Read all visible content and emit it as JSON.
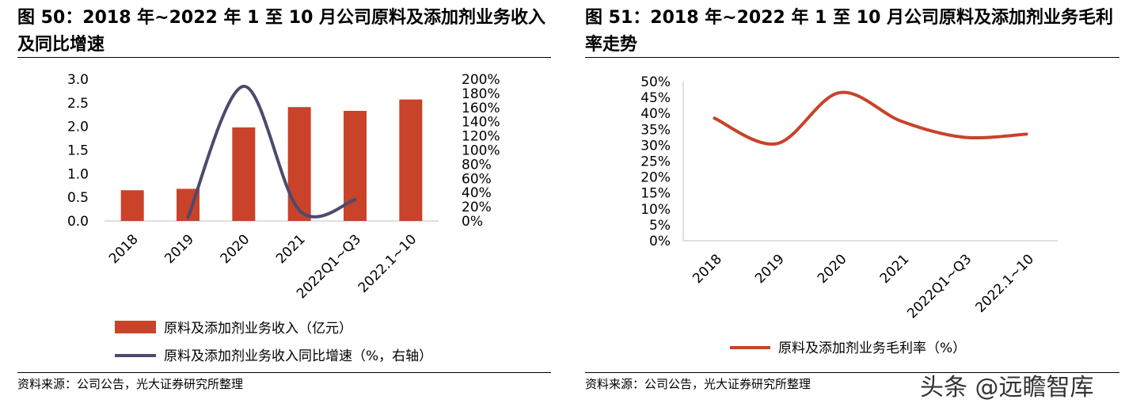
{
  "chart_data": [
    {
      "type": "bar",
      "title": "图 50：2018 年~2022 年 1 至 10 月公司原料及添加剂业务收入及同比增速",
      "title_lines": [
        "图 50：2018 年~2022 年 1 至 10 月公司原料及添加剂业务收入",
        "及同比增速"
      ],
      "categories": [
        "2018",
        "2019",
        "2020",
        "2021",
        "2022Q1~Q3",
        "2022.1~10"
      ],
      "series": [
        {
          "name": "原料及添加剂业务收入（亿元）",
          "type": "bar",
          "axis": "left",
          "color": "#C8432A",
          "values": [
            0.65,
            0.68,
            1.98,
            2.41,
            2.33,
            2.57
          ]
        },
        {
          "name": "原料及添加剂业务收入同比增速（%，右轴）",
          "type": "line",
          "axis": "right",
          "color": "#4B4A6E",
          "values": [
            null,
            5,
            190,
            15,
            30,
            null
          ]
        }
      ],
      "y_left": {
        "min": 0,
        "max": 3.0,
        "ticks": [
          "0.0",
          "0.5",
          "1.0",
          "1.5",
          "2.0",
          "2.5",
          "3.0"
        ]
      },
      "y_right": {
        "min": 0,
        "max": 200,
        "ticks": [
          "0%",
          "20%",
          "40%",
          "60%",
          "80%",
          "100%",
          "120%",
          "140%",
          "160%",
          "180%",
          "200%"
        ]
      },
      "grid": false,
      "legend_position": "bottom",
      "source": "资料来源：公司公告，光大证券研究所整理"
    },
    {
      "type": "line",
      "title": "图 51：2018 年~2022 年 1 至 10 月公司原料及添加剂业务毛利率走势",
      "title_lines": [
        "图 51：2018 年~2022 年 1 至 10 月公司原料及添加剂业务毛利",
        "率走势"
      ],
      "categories": [
        "2018",
        "2019",
        "2020",
        "2021",
        "2022Q1~Q3",
        "2022.1~10"
      ],
      "series": [
        {
          "name": "原料及添加剂业务毛利率（%）",
          "color": "#C8432A",
          "values": [
            38.5,
            30.5,
            46.5,
            37.5,
            32.5,
            33.5
          ]
        }
      ],
      "y": {
        "min": 0,
        "max": 50,
        "ticks": [
          "0%",
          "5%",
          "10%",
          "15%",
          "20%",
          "25%",
          "30%",
          "35%",
          "40%",
          "45%",
          "50%"
        ]
      },
      "grid": false,
      "legend_position": "bottom",
      "source": "资料来源：公司公告，光大证券研究所整理"
    }
  ],
  "watermark": "头条 @远瞻智库"
}
